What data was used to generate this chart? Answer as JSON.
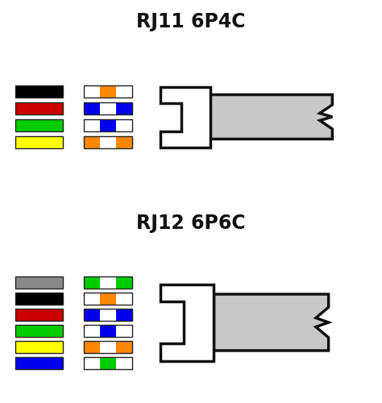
{
  "title1": "RJ11 6P4C",
  "title2": "RJ12 6P6C",
  "background": "#ffffff",
  "rj11_wires_left": [
    {
      "color": "#000000"
    },
    {
      "color": "#cc0000"
    },
    {
      "color": "#00cc00"
    },
    {
      "color": "#ffff00"
    }
  ],
  "rj11_wires_right": [
    {
      "segments": [
        "#ffffff",
        "#ff8800",
        "#ffffff"
      ]
    },
    {
      "segments": [
        "#0000ee",
        "#ffffff",
        "#0000ee"
      ]
    },
    {
      "segments": [
        "#ffffff",
        "#0000ee",
        "#ffffff"
      ]
    },
    {
      "segments": [
        "#ff8800",
        "#ffffff",
        "#ff8800"
      ]
    }
  ],
  "rj12_wires_left": [
    {
      "color": "#888888"
    },
    {
      "color": "#000000"
    },
    {
      "color": "#cc0000"
    },
    {
      "color": "#00cc00"
    },
    {
      "color": "#ffff00"
    },
    {
      "color": "#0000ee"
    }
  ],
  "rj12_wires_right": [
    {
      "segments": [
        "#00cc00",
        "#ffffff",
        "#00cc00"
      ]
    },
    {
      "segments": [
        "#ffffff",
        "#ff8800",
        "#ffffff"
      ]
    },
    {
      "segments": [
        "#0000ee",
        "#ffffff",
        "#0000ee"
      ]
    },
    {
      "segments": [
        "#ffffff",
        "#0000ee",
        "#ffffff"
      ]
    },
    {
      "segments": [
        "#ff8800",
        "#ffffff",
        "#ff8800"
      ]
    },
    {
      "segments": [
        "#ffffff",
        "#00cc00",
        "#ffffff"
      ]
    }
  ],
  "wire_lw": 1.0,
  "connector_lw": 2.5,
  "connector_ec": "#111111"
}
